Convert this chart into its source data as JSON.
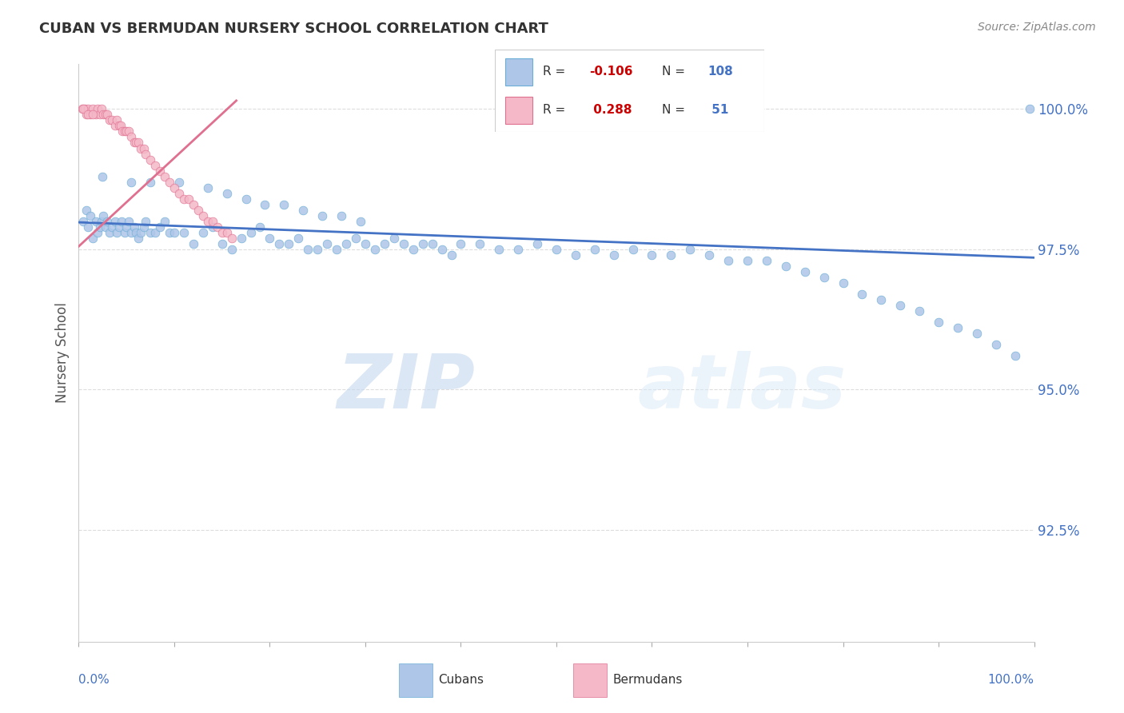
{
  "title": "CUBAN VS BERMUDAN NURSERY SCHOOL CORRELATION CHART",
  "source": "Source: ZipAtlas.com",
  "ylabel": "Nursery School",
  "ytick_labels": [
    "100.0%",
    "97.5%",
    "95.0%",
    "92.5%"
  ],
  "ytick_values": [
    1.0,
    0.975,
    0.95,
    0.925
  ],
  "xmin": 0.0,
  "xmax": 1.0,
  "ymin": 0.905,
  "ymax": 1.008,
  "cubans_x": [
    0.005,
    0.008,
    0.01,
    0.012,
    0.015,
    0.018,
    0.02,
    0.022,
    0.024,
    0.026,
    0.028,
    0.03,
    0.032,
    0.035,
    0.038,
    0.04,
    0.042,
    0.045,
    0.048,
    0.05,
    0.052,
    0.055,
    0.058,
    0.06,
    0.062,
    0.065,
    0.068,
    0.07,
    0.075,
    0.08,
    0.085,
    0.09,
    0.095,
    0.1,
    0.11,
    0.12,
    0.13,
    0.14,
    0.15,
    0.16,
    0.17,
    0.18,
    0.19,
    0.2,
    0.21,
    0.22,
    0.23,
    0.24,
    0.25,
    0.26,
    0.27,
    0.28,
    0.29,
    0.3,
    0.31,
    0.32,
    0.33,
    0.34,
    0.35,
    0.36,
    0.37,
    0.38,
    0.39,
    0.4,
    0.42,
    0.44,
    0.46,
    0.48,
    0.5,
    0.52,
    0.54,
    0.56,
    0.58,
    0.6,
    0.62,
    0.64,
    0.66,
    0.68,
    0.7,
    0.72,
    0.74,
    0.76,
    0.78,
    0.8,
    0.82,
    0.84,
    0.86,
    0.88,
    0.9,
    0.92,
    0.94,
    0.96,
    0.98,
    0.995,
    0.025,
    0.055,
    0.075,
    0.105,
    0.135,
    0.155,
    0.175,
    0.195,
    0.215,
    0.235,
    0.255,
    0.275,
    0.295
  ],
  "cubans_y": [
    0.98,
    0.982,
    0.979,
    0.981,
    0.977,
    0.98,
    0.978,
    0.979,
    0.98,
    0.981,
    0.979,
    0.98,
    0.978,
    0.979,
    0.98,
    0.978,
    0.979,
    0.98,
    0.978,
    0.979,
    0.98,
    0.978,
    0.979,
    0.978,
    0.977,
    0.978,
    0.979,
    0.98,
    0.978,
    0.978,
    0.979,
    0.98,
    0.978,
    0.978,
    0.978,
    0.976,
    0.978,
    0.979,
    0.976,
    0.975,
    0.977,
    0.978,
    0.979,
    0.977,
    0.976,
    0.976,
    0.977,
    0.975,
    0.975,
    0.976,
    0.975,
    0.976,
    0.977,
    0.976,
    0.975,
    0.976,
    0.977,
    0.976,
    0.975,
    0.976,
    0.976,
    0.975,
    0.974,
    0.976,
    0.976,
    0.975,
    0.975,
    0.976,
    0.975,
    0.974,
    0.975,
    0.974,
    0.975,
    0.974,
    0.974,
    0.975,
    0.974,
    0.973,
    0.973,
    0.973,
    0.972,
    0.971,
    0.97,
    0.969,
    0.967,
    0.966,
    0.965,
    0.964,
    0.962,
    0.961,
    0.96,
    0.958,
    0.956,
    1.0,
    0.988,
    0.987,
    0.987,
    0.987,
    0.986,
    0.985,
    0.984,
    0.983,
    0.983,
    0.982,
    0.981,
    0.981,
    0.98
  ],
  "bermudans_x": [
    0.004,
    0.006,
    0.008,
    0.01,
    0.012,
    0.015,
    0.018,
    0.02,
    0.022,
    0.024,
    0.026,
    0.028,
    0.03,
    0.032,
    0.035,
    0.038,
    0.04,
    0.042,
    0.044,
    0.046,
    0.048,
    0.05,
    0.052,
    0.055,
    0.058,
    0.06,
    0.062,
    0.065,
    0.068,
    0.07,
    0.075,
    0.08,
    0.085,
    0.09,
    0.095,
    0.1,
    0.105,
    0.11,
    0.115,
    0.12,
    0.125,
    0.13,
    0.135,
    0.14,
    0.145,
    0.15,
    0.155,
    0.16,
    0.005,
    0.01,
    0.015
  ],
  "bermudans_y": [
    1.0,
    1.0,
    0.999,
    1.0,
    0.999,
    1.0,
    0.999,
    1.0,
    0.999,
    1.0,
    0.999,
    0.999,
    0.999,
    0.998,
    0.998,
    0.997,
    0.998,
    0.997,
    0.997,
    0.996,
    0.996,
    0.996,
    0.996,
    0.995,
    0.994,
    0.994,
    0.994,
    0.993,
    0.993,
    0.992,
    0.991,
    0.99,
    0.989,
    0.988,
    0.987,
    0.986,
    0.985,
    0.984,
    0.984,
    0.983,
    0.982,
    0.981,
    0.98,
    0.98,
    0.979,
    0.978,
    0.978,
    0.977,
    1.0,
    0.999,
    0.999
  ],
  "blue_line_x": [
    0.0,
    1.0
  ],
  "blue_line_y": [
    0.9798,
    0.9735
  ],
  "pink_line_x": [
    0.0,
    0.165
  ],
  "pink_line_y": [
    0.9755,
    1.0015
  ],
  "watermark_zip": "ZIP",
  "watermark_atlas": "atlas",
  "dot_size": 60,
  "background_color": "#ffffff",
  "grid_color": "#dddddd",
  "title_color": "#333333",
  "axis_label_color": "#4472c4",
  "blue_dot_color": "#aec6e8",
  "blue_dot_edge": "#6baed6",
  "pink_dot_color": "#f4b8c8",
  "pink_dot_edge": "#e07090",
  "blue_line_color": "#4472c4",
  "pink_line_color": "#e07090",
  "legend_R_color": "#cc0000",
  "legend_N_color": "#4472c4",
  "legend_text_color": "#333333",
  "source_color": "#888888"
}
